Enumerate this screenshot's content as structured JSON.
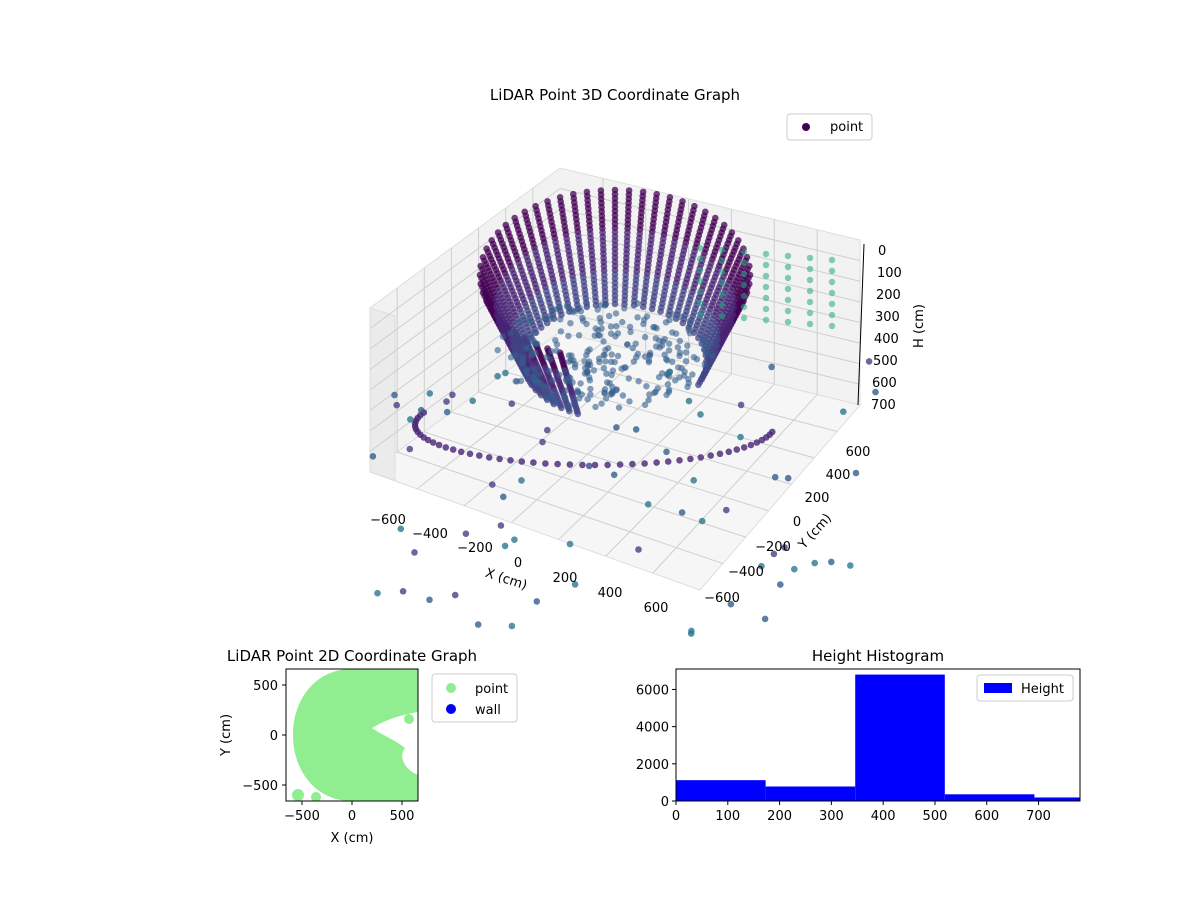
{
  "chart_data": [
    {
      "type": "scatter",
      "projection": "3d",
      "title": "LiDAR Point 3D Coordinate Graph",
      "xlabel": "X (cm)",
      "ylabel": "Y (cm)",
      "zlabel": "H (cm)",
      "xlim": [
        -650,
        650
      ],
      "ylim": [
        -650,
        650
      ],
      "zlim": [
        0,
        780
      ],
      "z_inverted": true,
      "xticks": [
        "−600",
        "−400",
        "−200",
        "0",
        "200",
        "400",
        "600"
      ],
      "yticks": [
        "−600",
        "−400",
        "−200",
        "0",
        "200",
        "400",
        "600"
      ],
      "zticks": [
        "0",
        "100",
        "200",
        "300",
        "400",
        "500",
        "600",
        "700"
      ],
      "grid": true,
      "colormap": "viridis",
      "legend": {
        "position": "top-right",
        "entries": [
          {
            "name": "point",
            "color": "#440154"
          }
        ]
      },
      "series": [
        {
          "name": "point",
          "shape": "curved wall arc with floor dome",
          "points": [
            [
              600,
              -300,
              0
            ],
            [
              450,
              -450,
              20
            ],
            [
              200,
              -550,
              60
            ],
            [
              -100,
              -550,
              100
            ],
            [
              -400,
              -400,
              150
            ],
            [
              -550,
              -100,
              200
            ],
            [
              -550,
              200,
              250
            ],
            [
              -400,
              450,
              300
            ],
            [
              -100,
              550,
              350
            ],
            [
              200,
              550,
              400
            ],
            [
              500,
              350,
              450
            ],
            [
              600,
              0,
              500
            ],
            [
              0,
              0,
              600
            ],
            [
              -300,
              -200,
              700
            ]
          ]
        }
      ]
    },
    {
      "type": "scatter",
      "title": "LiDAR Point 2D Coordinate Graph",
      "xlabel": "X (cm)",
      "ylabel": "Y (cm)",
      "xlim": [
        -650,
        650
      ],
      "ylim": [
        -650,
        650
      ],
      "xticks": [
        "−500",
        "0",
        "500"
      ],
      "yticks": [
        "−500",
        "0",
        "500"
      ],
      "legend": {
        "position": "outside-right",
        "entries": [
          {
            "name": "point",
            "color": "#90ee90"
          },
          {
            "name": "wall",
            "color": "#0000ff"
          }
        ]
      },
      "series": [
        {
          "name": "point",
          "color": "#90ee90",
          "shape": "disc centered near (0,0), radius ~650, notched on right"
        },
        {
          "name": "wall",
          "color": "#0000ff",
          "points": []
        }
      ]
    },
    {
      "type": "histogram",
      "title": "Height Histogram",
      "xlim": [
        0,
        780
      ],
      "ylim": [
        0,
        7100
      ],
      "xticks": [
        "0",
        "100",
        "200",
        "300",
        "400",
        "500",
        "600",
        "700"
      ],
      "yticks": [
        "0",
        "2000",
        "4000",
        "6000"
      ],
      "legend": {
        "position": "top-right",
        "entries": [
          {
            "name": "Height",
            "color": "#0000ff"
          }
        ]
      },
      "bins": [
        {
          "x0": 0,
          "x1": 173,
          "value": 1120
        },
        {
          "x0": 173,
          "x1": 346,
          "value": 780
        },
        {
          "x0": 346,
          "x1": 519,
          "value": 6800
        },
        {
          "x0": 519,
          "x1": 692,
          "value": 360
        },
        {
          "x0": 692,
          "x1": 865,
          "value": 190
        }
      ],
      "color": "#0000ff"
    }
  ]
}
